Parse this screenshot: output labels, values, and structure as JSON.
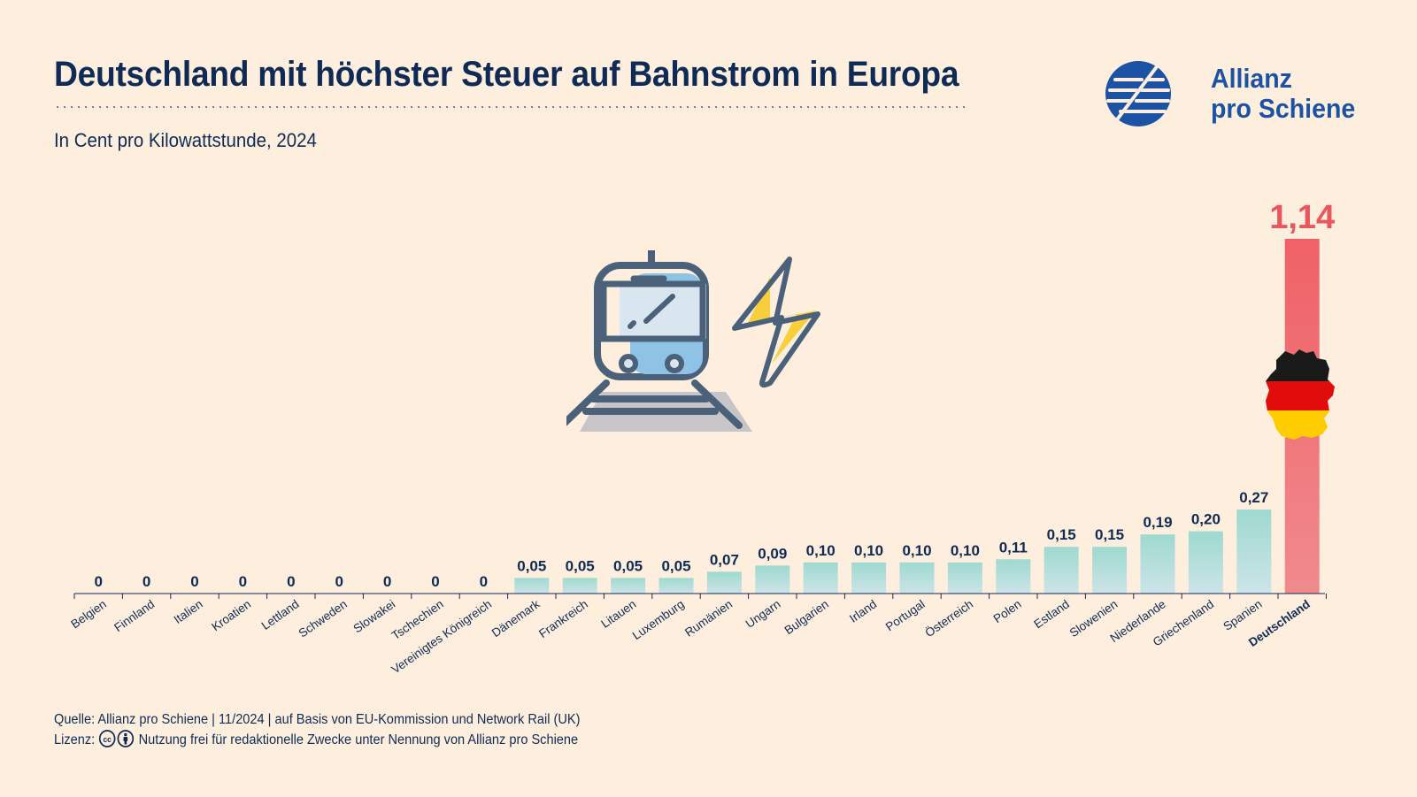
{
  "title": "Deutschland mit höchster Steuer auf Bahnstrom in Europa",
  "subtitle": "In Cent pro Kilowattstunde, 2024",
  "logo": {
    "line1": "Allianz",
    "line2": "pro Schiene",
    "color": "#1c52a4"
  },
  "footer": {
    "source": "Quelle: Allianz pro Schiene | 11/2024 | auf Basis von EU-Kommission und Network Rail (UK)",
    "license_label": "Lizenz:",
    "license_text": "Nutzung frei für redaktionelle Zwecke unter Nennung von Allianz pro Schiene"
  },
  "icons": [
    "train-icon",
    "lightning-icon",
    "germany-flag-map-icon",
    "cc-icon",
    "by-icon"
  ],
  "colors": {
    "background": "#fdeedd",
    "text": "#0f2b55",
    "bar_teal_top": "#9ed9cf",
    "bar_teal_bottom": "#c9e6e6",
    "highlight_bar": "#ef6a6e",
    "highlight_value": "#e9575c"
  },
  "chart_data": {
    "type": "bar",
    "categories": [
      "Belgien",
      "Finnland",
      "Italien",
      "Kroatien",
      "Lettland",
      "Schweden",
      "Slowakei",
      "Tschechien",
      "Vereinigtes Königreich",
      "Dänemark",
      "Frankreich",
      "Litauen",
      "Luxemburg",
      "Rumänien",
      "Ungarn",
      "Bulgarien",
      "Irland",
      "Portugal",
      "Österreich",
      "Polen",
      "Estland",
      "Slowenien",
      "Niederlande",
      "Griechenland",
      "Spanien",
      "Deutschland"
    ],
    "values": [
      0,
      0,
      0,
      0,
      0,
      0,
      0,
      0,
      0,
      0.05,
      0.05,
      0.05,
      0.05,
      0.07,
      0.09,
      0.1,
      0.1,
      0.1,
      0.1,
      0.11,
      0.15,
      0.15,
      0.19,
      0.2,
      0.27,
      1.14
    ],
    "labels": [
      "0",
      "0",
      "0",
      "0",
      "0",
      "0",
      "0",
      "0",
      "0",
      "0,05",
      "0,05",
      "0,05",
      "0,05",
      "0,07",
      "0,09",
      "0,10",
      "0,10",
      "0,10",
      "0,10",
      "0,11",
      "0,15",
      "0,15",
      "0,19",
      "0,20",
      "0,27",
      "1,14"
    ],
    "highlight": "Deutschland",
    "ylim": [
      0,
      1.14
    ],
    "grid": false,
    "legend": "none",
    "xlabel": "",
    "ylabel": ""
  }
}
